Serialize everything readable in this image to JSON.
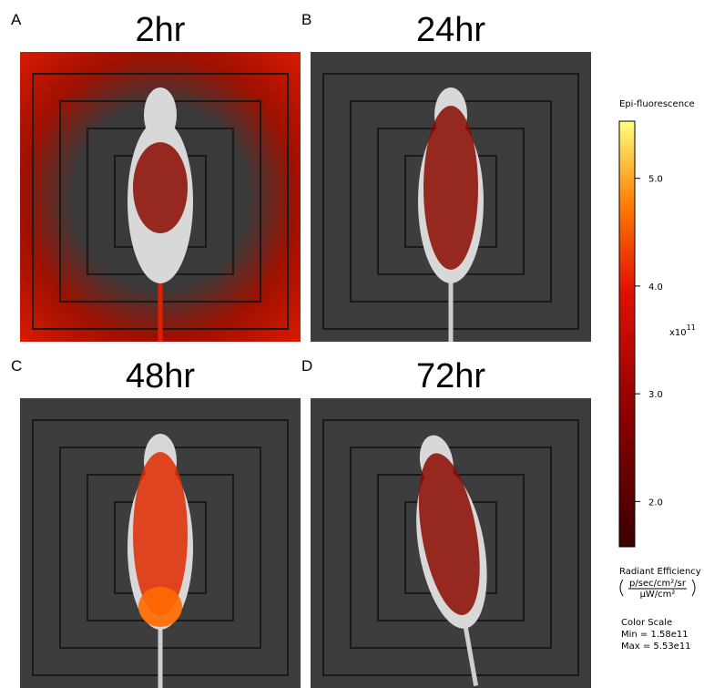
{
  "panels": [
    {
      "letter": "A",
      "title": "2hr"
    },
    {
      "letter": "B",
      "title": "24hr"
    },
    {
      "letter": "C",
      "title": "48hr"
    },
    {
      "letter": "D",
      "title": "72hr"
    }
  ],
  "colorbar": {
    "title": "Epi-fluorescence",
    "lim": [
      1.58,
      5.53
    ],
    "ticks": [
      {
        "value": 2,
        "label": "2.0"
      },
      {
        "value": 3,
        "label": "3.0"
      },
      {
        "value": 4,
        "label": "4.0"
      },
      {
        "value": 5,
        "label": "5.0"
      }
    ],
    "multiplier": "x10",
    "exponent": "11",
    "unit_label": "Radiant Efficiency",
    "unit_numerator": "p/sec/cm²/sr",
    "unit_denominator": "µW/cm²",
    "scale_title": "Color Scale",
    "min_text": "Min = 1.58e11",
    "max_text": "Max = 5.53e11"
  }
}
